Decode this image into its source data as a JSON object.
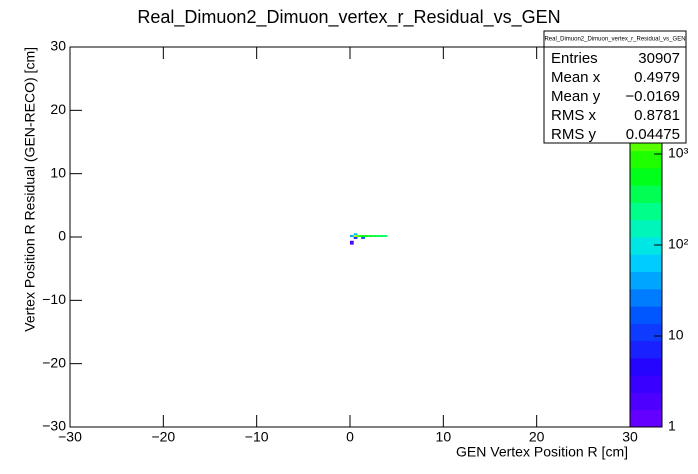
{
  "chart_data": {
    "type": "heatmap",
    "title": "Real_Dimuon2_Dimuon_vertex_r_Residual_vs_GEN",
    "x_label": "GEN Vertex Position R [cm]",
    "y_label": "Vertex Position R Residual (GEN-RECO) [cm]",
    "xlim": [
      -30,
      30
    ],
    "ylim": [
      -30,
      30
    ],
    "xticks": [
      {
        "value": -30,
        "label": "−30"
      },
      {
        "value": -20,
        "label": "−20"
      },
      {
        "value": -10,
        "label": "−10"
      },
      0,
      10,
      20,
      30
    ],
    "yticks": [
      {
        "value": -30,
        "label": "−30"
      },
      {
        "value": -20,
        "label": "−20"
      },
      {
        "value": -10,
        "label": "−10"
      },
      0,
      10,
      20,
      30
    ],
    "zlim": [
      1,
      15000
    ],
    "zlog": true,
    "zticks": [
      1,
      10,
      {
        "value": 100,
        "label": "10²"
      },
      {
        "value": 1000,
        "label": "10³"
      }
    ],
    "xbin_width": 0.4,
    "ybin_width": 0.3,
    "cells": [
      {
        "x": 0.0,
        "y": -1.2,
        "z": 2
      },
      {
        "x": 0.0,
        "y": -0.9,
        "z": 3
      },
      {
        "x": 0.4,
        "y": -0.3,
        "z": 8
      },
      {
        "x": 1.2,
        "y": -0.3,
        "z": 15
      },
      {
        "x": 0.0,
        "y": 0.0,
        "z": 40
      },
      {
        "x": 0.4,
        "y": 0.0,
        "z": 2500
      },
      {
        "x": 0.8,
        "y": 0.0,
        "z": 900
      },
      {
        "x": 1.2,
        "y": 0.0,
        "z": 700
      },
      {
        "x": 1.6,
        "y": 0.0,
        "z": 600
      },
      {
        "x": 2.0,
        "y": 0.0,
        "z": 500
      },
      {
        "x": 2.4,
        "y": 0.0,
        "z": 450
      },
      {
        "x": 2.8,
        "y": 0.0,
        "z": 400
      },
      {
        "x": 3.2,
        "y": 0.0,
        "z": 350
      },
      {
        "x": 3.6,
        "y": 0.0,
        "z": 300
      },
      {
        "x": 0.4,
        "y": 0.3,
        "z": 60
      }
    ],
    "stats": {
      "title": "Real_Dimuon2_Dimuon_vertex_r_Residual_vs_GEN",
      "rows": [
        {
          "label": "Entries",
          "value": 30907
        },
        {
          "label": "Mean x",
          "value": 0.4979
        },
        {
          "label": "Mean y",
          "value": -0.0169,
          "value_label": "−0.0169"
        },
        {
          "label": "RMS x",
          "value": 0.8781
        },
        {
          "label": "RMS y",
          "value": 0.04475
        }
      ]
    }
  }
}
